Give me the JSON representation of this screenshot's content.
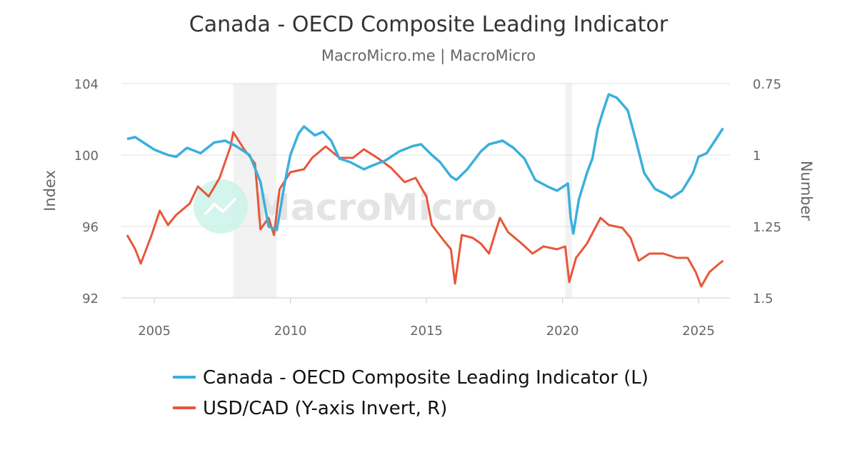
{
  "chart_data": {
    "type": "line",
    "title": "Canada - OECD Composite Leading Indicator",
    "subtitle": "MacroMicro.me | MacroMicro",
    "watermark": "MacroMicro",
    "xlabel": "",
    "ylabel_left": "Index",
    "ylabel_right": "Number",
    "xlim": [
      2004,
      2026.2
    ],
    "ylim_left": [
      92,
      104
    ],
    "ylim_right": [
      1.5,
      0.75
    ],
    "right_axis_inverted": true,
    "x_ticks": [
      "2005",
      "2010",
      "2015",
      "2020",
      "2025"
    ],
    "x_tick_values": [
      2005,
      2010,
      2015,
      2020,
      2025
    ],
    "y_ticks_left": [
      "92",
      "96",
      "100",
      "104"
    ],
    "y_tick_values_left": [
      92,
      96,
      100,
      104
    ],
    "y_ticks_right": [
      "1.5",
      "1.25",
      "1",
      "0.75"
    ],
    "y_tick_values_right": [
      1.5,
      1.25,
      1,
      0.75
    ],
    "grid": true,
    "legend_position": "bottom",
    "recessions": [
      [
        2007.9,
        2009.5
      ],
      [
        2020.1,
        2020.35
      ]
    ],
    "series": [
      {
        "name": "Canada - OECD Composite Leading Indicator (L)",
        "axis": "left",
        "color": "#3ab0dc",
        "x": [
          2004.0,
          2004.3,
          2005.0,
          2005.5,
          2005.8,
          2006.2,
          2006.7,
          2007.2,
          2007.6,
          2008.0,
          2008.5,
          2008.9,
          2009.2,
          2009.5,
          2009.8,
          2010.0,
          2010.3,
          2010.5,
          2010.9,
          2011.2,
          2011.5,
          2011.8,
          2012.2,
          2012.7,
          2013.0,
          2013.5,
          2014.0,
          2014.5,
          2014.8,
          2015.2,
          2015.5,
          2015.9,
          2016.1,
          2016.5,
          2017.0,
          2017.3,
          2017.8,
          2018.2,
          2018.6,
          2019.0,
          2019.5,
          2019.8,
          2020.1,
          2020.2,
          2020.3,
          2020.4,
          2020.6,
          2020.9,
          2021.1,
          2021.3,
          2021.5,
          2021.7,
          2022.0,
          2022.4,
          2022.7,
          2023.0,
          2023.4,
          2023.8,
          2024.0,
          2024.4,
          2024.8,
          2025.0,
          2025.3,
          2025.6,
          2025.9
        ],
        "values": [
          100.9,
          101.0,
          100.3,
          100.0,
          99.9,
          100.4,
          100.1,
          100.7,
          100.8,
          100.5,
          100.0,
          98.5,
          96.0,
          95.8,
          98.5,
          100.0,
          101.2,
          101.6,
          101.1,
          101.3,
          100.8,
          99.8,
          99.6,
          99.2,
          99.4,
          99.7,
          100.2,
          100.5,
          100.6,
          100.0,
          99.6,
          98.8,
          98.6,
          99.2,
          100.2,
          100.6,
          100.8,
          100.4,
          99.8,
          98.6,
          98.2,
          98.0,
          98.3,
          98.4,
          96.5,
          95.6,
          97.5,
          99.0,
          99.8,
          101.5,
          102.5,
          103.4,
          103.2,
          102.5,
          100.8,
          99.0,
          98.1,
          97.8,
          97.6,
          98.0,
          99.0,
          99.9,
          100.1,
          100.8,
          101.5
        ]
      },
      {
        "name": "USD/CAD (Y-axis Invert, R)",
        "axis": "right",
        "color": "#e8563a",
        "x": [
          2004.0,
          2004.3,
          2004.5,
          2004.9,
          2005.2,
          2005.5,
          2005.8,
          2006.3,
          2006.6,
          2007.0,
          2007.4,
          2007.8,
          2007.9,
          2008.3,
          2008.7,
          2008.9,
          2009.2,
          2009.4,
          2009.6,
          2010.0,
          2010.5,
          2010.8,
          2011.3,
          2011.8,
          2012.3,
          2012.7,
          2013.2,
          2013.7,
          2014.2,
          2014.6,
          2015.0,
          2015.2,
          2015.6,
          2015.9,
          2016.05,
          2016.3,
          2016.7,
          2017.0,
          2017.3,
          2017.7,
          2018.0,
          2018.5,
          2018.9,
          2019.3,
          2019.8,
          2020.1,
          2020.25,
          2020.5,
          2020.9,
          2021.4,
          2021.7,
          2022.2,
          2022.5,
          2022.8,
          2023.2,
          2023.7,
          2024.2,
          2024.6,
          2024.9,
          2025.1,
          2025.4,
          2025.7,
          2025.9
        ],
        "values": [
          1.28,
          1.33,
          1.38,
          1.28,
          1.195,
          1.245,
          1.21,
          1.17,
          1.11,
          1.145,
          1.08,
          0.97,
          0.92,
          0.98,
          1.03,
          1.26,
          1.22,
          1.28,
          1.12,
          1.06,
          1.05,
          1.01,
          0.97,
          1.01,
          1.01,
          0.98,
          1.01,
          1.045,
          1.095,
          1.08,
          1.145,
          1.245,
          1.295,
          1.33,
          1.45,
          1.28,
          1.29,
          1.31,
          1.345,
          1.22,
          1.27,
          1.31,
          1.345,
          1.32,
          1.33,
          1.32,
          1.445,
          1.36,
          1.31,
          1.22,
          1.245,
          1.255,
          1.29,
          1.37,
          1.345,
          1.345,
          1.36,
          1.36,
          1.41,
          1.46,
          1.41,
          1.385,
          1.37
        ]
      }
    ]
  }
}
